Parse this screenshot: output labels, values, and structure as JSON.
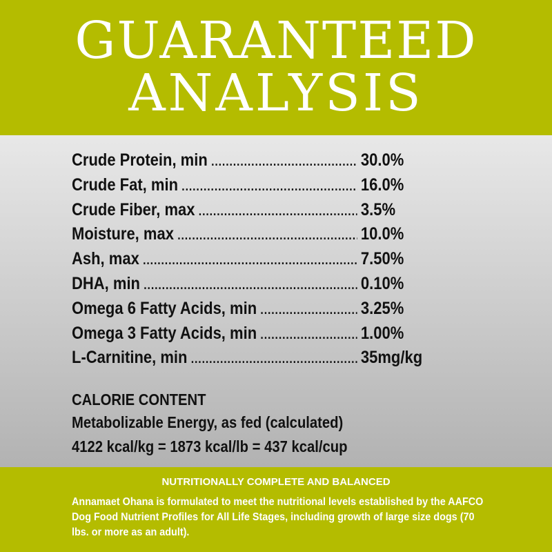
{
  "header": {
    "line1": "GUARANTEED",
    "line2": "ANALYSIS"
  },
  "analysis": [
    {
      "label": "Crude Protein, min",
      "value": "30.0%"
    },
    {
      "label": "Crude Fat, min",
      "value": "16.0%"
    },
    {
      "label": "Crude Fiber, max",
      "value": "3.5%"
    },
    {
      "label": "Moisture, max",
      "value": "10.0%"
    },
    {
      "label": "Ash, max",
      "value": "7.50%"
    },
    {
      "label": "DHA, min",
      "value": "0.10%"
    },
    {
      "label": "Omega 6 Fatty Acids, min",
      "value": "3.25%"
    },
    {
      "label": "Omega 3 Fatty Acids, min",
      "value": "1.00%"
    },
    {
      "label": "L-Carnitine, min",
      "value": "35mg/kg"
    }
  ],
  "calorie": {
    "heading": "CALORIE CONTENT",
    "subheading": "Metabolizable Energy, as fed (calculated)",
    "values": "4122 kcal/kg = 1873 kcal/lb = 437 kcal/cup"
  },
  "footer": {
    "heading": "NUTRITIONALLY COMPLETE AND BALANCED",
    "text": "Annamaet Ohana is formulated to meet the nutritional levels established by the AAFCO Dog Food Nutrient Profiles for All Life Stages, including growth of large size dogs (70 lbs. or more as an adult)."
  },
  "colors": {
    "brand_green": "#b4bc00",
    "text": "#111111"
  }
}
